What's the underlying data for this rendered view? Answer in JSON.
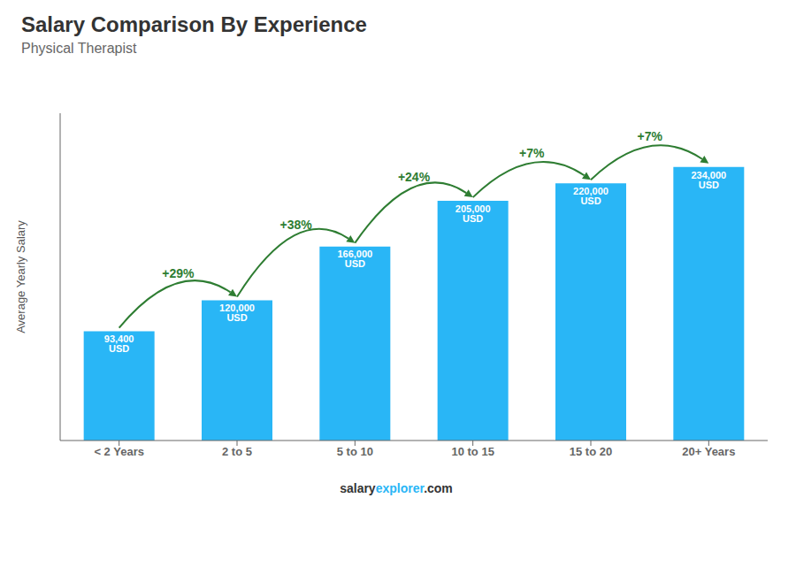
{
  "chart_data": {
    "type": "bar",
    "title": "Salary Comparison By Experience",
    "subtitle": "Physical Therapist",
    "categories": [
      "< 2 Years",
      "2 to 5",
      "5 to 10",
      "10 to 15",
      "15 to 20",
      "20+ Years"
    ],
    "values": [
      93400,
      120000,
      166000,
      205000,
      220000,
      234000
    ],
    "value_labels": [
      "93,400 USD",
      "120,000 USD",
      "166,000 USD",
      "205,000 USD",
      "220,000 USD",
      "234,000 USD"
    ],
    "annotations": [
      "+29%",
      "+38%",
      "+24%",
      "+7%",
      "+7%"
    ],
    "ylabel": "Average Yearly Salary",
    "footer": [
      "salary",
      "explorer",
      ".com"
    ],
    "color": "#29B6F6",
    "ylim": [
      0,
      280000
    ],
    "tick_labels": "x",
    "grid": false
  }
}
